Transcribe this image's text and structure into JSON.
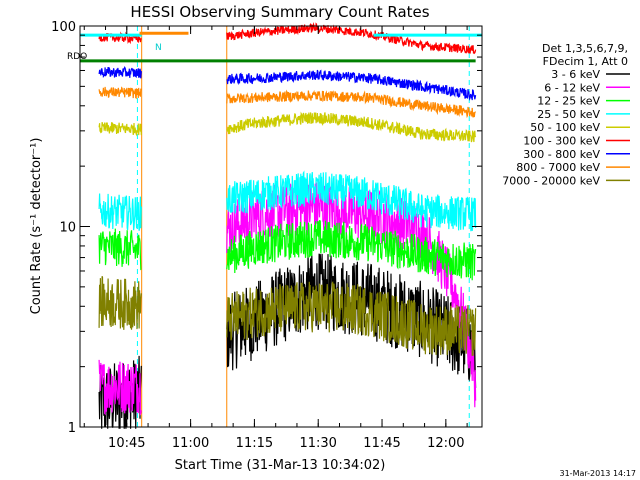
{
  "chart_data": {
    "type": "line",
    "title": "HESSI Observing Summary Count Rates",
    "xlabel": "Start Time (31-Mar-13 10:34:02)",
    "ylabel": "Count Rate (s⁻¹ detector⁻¹)",
    "yscale": "log",
    "ylim": [
      1,
      100
    ],
    "xlim_minutes": [
      34.0,
      128.5
    ],
    "x_ticks": [
      {
        "label": "10:45",
        "min": 45
      },
      {
        "label": "11:00",
        "min": 60
      },
      {
        "label": "11:15",
        "min": 75
      },
      {
        "label": "11:30",
        "min": 90
      },
      {
        "label": "11:45",
        "min": 105
      },
      {
        "label": "12:00",
        "min": 120
      }
    ],
    "y_ticks": [
      {
        "label": "1",
        "value": 1
      },
      {
        "label": "10",
        "value": 10
      },
      {
        "label": "100",
        "value": 100
      }
    ],
    "legend_header": [
      "Det 1,3,5,6,7,9,",
      "FDecim 1, Att 0"
    ],
    "legend_placement": "right",
    "annotations": [
      "RDO",
      "N"
    ],
    "timestamp": "31-Mar-2013 14:17",
    "segments": [
      [
        38.5,
        48.5
      ],
      [
        68.5,
        127.0
      ]
    ],
    "series": [
      {
        "name": "3 - 6 keV",
        "color": "#000000",
        "base": [
          1.3,
          1.5,
          2.5,
          3.5,
          4.8,
          4.3,
          3.4,
          2.4
        ],
        "noise": 0.45
      },
      {
        "name": "6 - 12 keV",
        "color": "#ff00ff",
        "base": [
          1.6,
          1.6,
          8.5,
          11.5,
          12.5,
          11.5,
          9.5,
          1.6
        ],
        "noise": 0.32
      },
      {
        "name": "12 - 25 keV",
        "color": "#00ff00",
        "base": [
          8.0,
          7.5,
          6.5,
          8.0,
          8.8,
          8.3,
          7.2,
          6.6
        ],
        "noise": 0.22
      },
      {
        "name": "25 - 50 keV",
        "color": "#00ffff",
        "base": [
          12.0,
          11.5,
          13.0,
          14.5,
          15.5,
          14.5,
          12.0,
          11.5
        ],
        "noise": 0.2
      },
      {
        "name": "50 - 100 keV",
        "color": "#cccc00",
        "base": [
          31.0,
          30.5,
          29.5,
          33.0,
          35.0,
          33.0,
          29.0,
          28.0
        ],
        "noise": 0.07
      },
      {
        "name": "100 - 300 keV",
        "color": "#ff0000",
        "base": [
          88.0,
          86.0,
          86.0,
          93.0,
          98.0,
          92.0,
          80.0,
          76.0
        ],
        "noise": 0.05
      },
      {
        "name": "300 - 800 keV",
        "color": "#0000ff",
        "base": [
          59.0,
          58.0,
          54.0,
          55.0,
          57.0,
          55.0,
          50.0,
          45.0
        ],
        "noise": 0.06
      },
      {
        "name": "800 - 7000 keV",
        "color": "#ff8800",
        "base": [
          47.0,
          46.0,
          43.0,
          44.0,
          45.0,
          44.0,
          40.0,
          37.0
        ],
        "noise": 0.06
      },
      {
        "name": "7000 - 20000 keV",
        "color": "#808000",
        "base": [
          4.2,
          4.0,
          3.2,
          3.8,
          4.0,
          3.8,
          3.1,
          3.0
        ],
        "noise": 0.3
      }
    ],
    "flags": [
      {
        "name": "attenuator-flag",
        "color": "#00ffff",
        "value": 90,
        "ranges": [
          [
            34.0,
            48.5
          ],
          [
            103.0,
            128.5
          ]
        ]
      },
      {
        "name": "rdo-flag",
        "color": "#008000",
        "value": 67,
        "ranges": [
          [
            34.0,
            127.0
          ]
        ]
      },
      {
        "name": "saa-flag",
        "color": "#ff8800",
        "value": 92,
        "ranges": [
          [
            48.0,
            59.5
          ]
        ]
      }
    ],
    "night_markers_min": [
      48.5,
      68.5
    ],
    "night_marker_color": "#ff8800",
    "day_markers_min": [
      47.5,
      125.5
    ],
    "day_marker_color": "#00ffff"
  }
}
